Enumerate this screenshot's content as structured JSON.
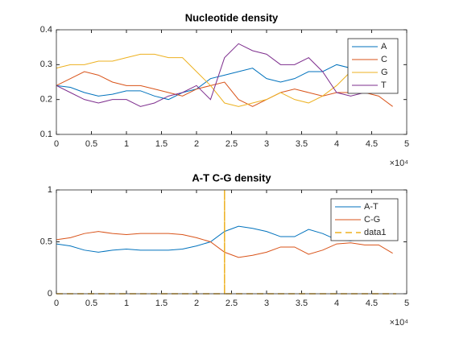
{
  "chart_data": [
    {
      "type": "line",
      "title": "Nucleotide density",
      "x": [
        0,
        2000,
        4000,
        6000,
        8000,
        10000,
        12000,
        14000,
        16000,
        18000,
        20000,
        22000,
        24000,
        26000,
        28000,
        30000,
        32000,
        34000,
        36000,
        38000,
        40000,
        42000,
        44000,
        46000,
        48000
      ],
      "series": [
        {
          "name": "A",
          "color": "#0072BD",
          "values": [
            0.24,
            0.235,
            0.22,
            0.21,
            0.215,
            0.225,
            0.225,
            0.21,
            0.2,
            0.22,
            0.23,
            0.26,
            0.27,
            0.28,
            0.29,
            0.26,
            0.25,
            0.26,
            0.28,
            0.28,
            0.3,
            0.29,
            0.31,
            0.31,
            0.3
          ]
        },
        {
          "name": "C",
          "color": "#D95319",
          "values": [
            0.24,
            0.26,
            0.28,
            0.27,
            0.25,
            0.24,
            0.24,
            0.23,
            0.22,
            0.21,
            0.23,
            0.24,
            0.25,
            0.2,
            0.18,
            0.2,
            0.22,
            0.23,
            0.22,
            0.21,
            0.22,
            0.22,
            0.22,
            0.21,
            0.18
          ]
        },
        {
          "name": "G",
          "color": "#EDB120",
          "values": [
            0.29,
            0.3,
            0.3,
            0.31,
            0.31,
            0.32,
            0.33,
            0.33,
            0.32,
            0.32,
            0.28,
            0.24,
            0.19,
            0.18,
            0.19,
            0.2,
            0.22,
            0.2,
            0.19,
            0.21,
            0.24,
            0.28,
            0.29,
            0.29,
            0.29
          ]
        },
        {
          "name": "T",
          "color": "#7E2F8E",
          "values": [
            0.24,
            0.22,
            0.2,
            0.19,
            0.2,
            0.2,
            0.18,
            0.19,
            0.21,
            0.22,
            0.24,
            0.2,
            0.32,
            0.36,
            0.34,
            0.33,
            0.3,
            0.3,
            0.32,
            0.28,
            0.22,
            0.21,
            0.22,
            0.22,
            0.22
          ]
        }
      ],
      "xlim": [
        0,
        50000
      ],
      "xticks": [
        0,
        {
          "value": 5000,
          "label": "0.5"
        },
        {
          "value": 10000,
          "label": "1"
        },
        {
          "value": 15000,
          "label": "1.5"
        },
        {
          "value": 20000,
          "label": "2"
        },
        {
          "value": 25000,
          "label": "2.5"
        },
        {
          "value": 30000,
          "label": "3"
        },
        {
          "value": 35000,
          "label": "3.5"
        },
        {
          "value": 40000,
          "label": "4"
        },
        {
          "value": 45000,
          "label": "4.5"
        },
        {
          "value": 50000,
          "label": "5"
        }
      ],
      "x_multiplier": "×10⁴",
      "ylim": [
        0.1,
        0.4
      ],
      "yticks": [
        0.1,
        0.2,
        0.3,
        0.4
      ],
      "legend": "northeast",
      "grid": false
    },
    {
      "type": "line",
      "title": "A-T C-G density",
      "x": [
        0,
        2000,
        4000,
        6000,
        8000,
        10000,
        12000,
        14000,
        16000,
        18000,
        20000,
        22000,
        24000,
        26000,
        28000,
        30000,
        32000,
        34000,
        36000,
        38000,
        40000,
        42000,
        44000,
        46000,
        48000
      ],
      "series": [
        {
          "name": "A-T",
          "color": "#0072BD",
          "values": [
            0.48,
            0.46,
            0.42,
            0.4,
            0.42,
            0.43,
            0.42,
            0.42,
            0.42,
            0.43,
            0.46,
            0.5,
            0.6,
            0.65,
            0.63,
            0.6,
            0.55,
            0.55,
            0.62,
            0.58,
            0.52,
            0.51,
            0.53,
            0.53,
            0.61
          ]
        },
        {
          "name": "C-G",
          "color": "#D95319",
          "values": [
            0.52,
            0.54,
            0.58,
            0.6,
            0.58,
            0.57,
            0.58,
            0.58,
            0.58,
            0.57,
            0.54,
            0.5,
            0.4,
            0.35,
            0.37,
            0.4,
            0.45,
            0.45,
            0.38,
            0.42,
            0.48,
            0.49,
            0.47,
            0.47,
            0.39
          ]
        },
        {
          "name": "data1",
          "color": "#EDB120",
          "linestyle": "dashed",
          "x": [
            0,
            24000,
            24000,
            24000,
            48500
          ],
          "values": [
            0,
            0,
            1,
            0,
            0
          ]
        }
      ],
      "xlim": [
        0,
        50000
      ],
      "xticks": [
        0,
        {
          "value": 5000,
          "label": "0.5"
        },
        {
          "value": 10000,
          "label": "1"
        },
        {
          "value": 15000,
          "label": "1.5"
        },
        {
          "value": 20000,
          "label": "2"
        },
        {
          "value": 25000,
          "label": "2.5"
        },
        {
          "value": 30000,
          "label": "3"
        },
        {
          "value": 35000,
          "label": "3.5"
        },
        {
          "value": 40000,
          "label": "4"
        },
        {
          "value": 45000,
          "label": "4.5"
        },
        {
          "value": 50000,
          "label": "5"
        }
      ],
      "x_multiplier": "×10⁴",
      "ylim": [
        0,
        1
      ],
      "yticks": [
        0,
        0.5,
        1
      ],
      "legend": "northeast",
      "grid": false
    }
  ]
}
